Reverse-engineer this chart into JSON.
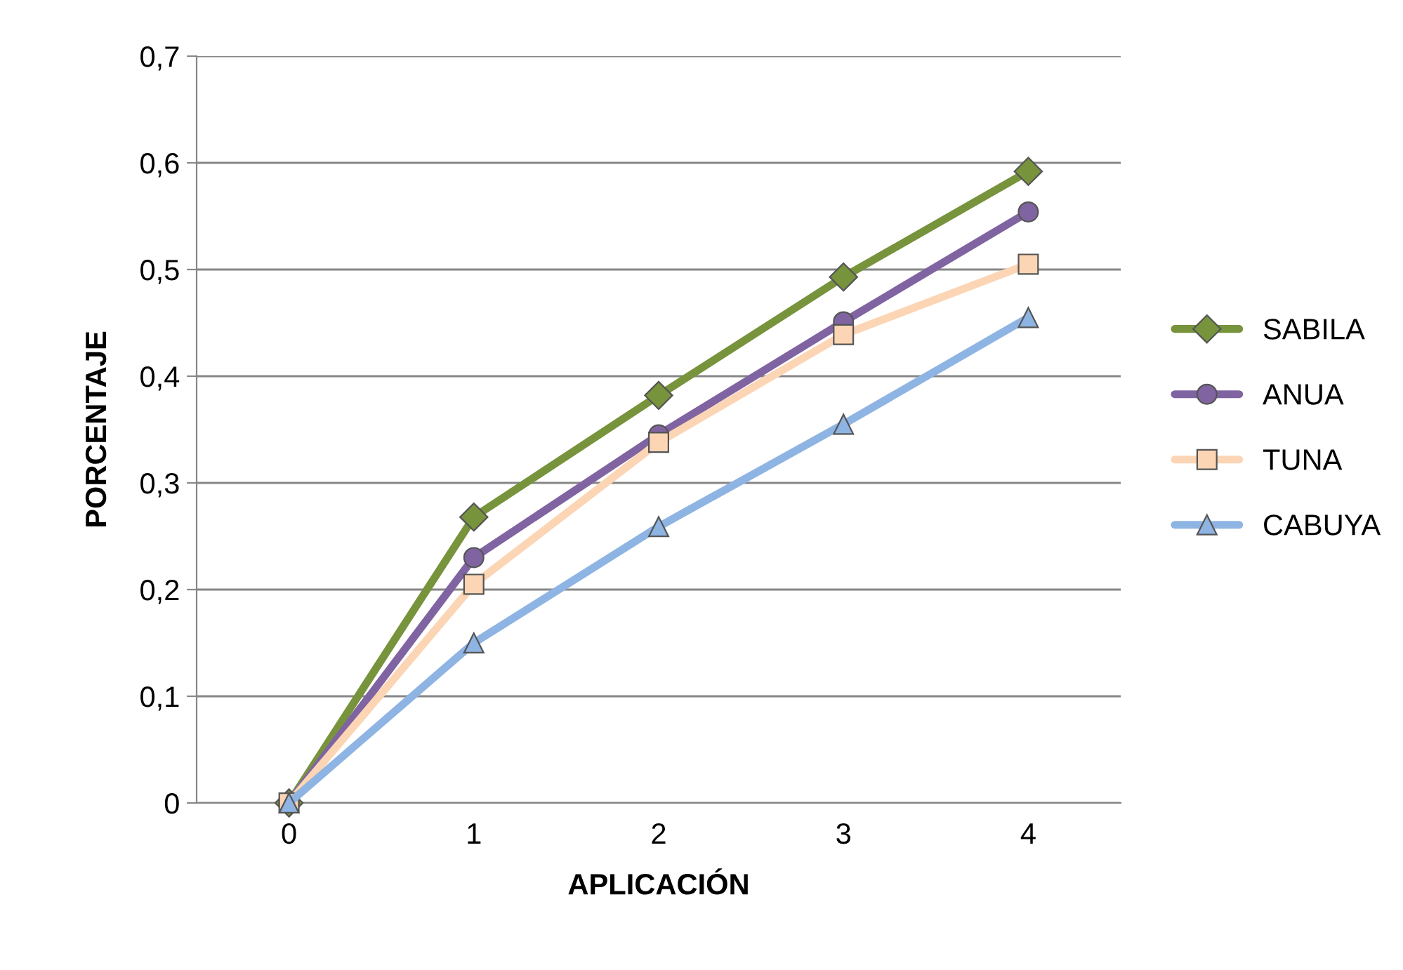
{
  "chart_data": {
    "type": "line",
    "xlabel": "APLICACIÓN",
    "ylabel": "PORCENTAJE",
    "categories": [
      "0",
      "1",
      "2",
      "3",
      "4"
    ],
    "ylim": [
      0,
      0.7
    ],
    "yticks": [
      {
        "value": 0,
        "label": "0"
      },
      {
        "value": 0.1,
        "label": "0,1"
      },
      {
        "value": 0.2,
        "label": "0,2"
      },
      {
        "value": 0.3,
        "label": "0,3"
      },
      {
        "value": 0.4,
        "label": "0,4"
      },
      {
        "value": 0.5,
        "label": "0,5"
      },
      {
        "value": 0.6,
        "label": "0,6"
      },
      {
        "value": 0.7,
        "label": "0,7"
      }
    ],
    "grid": "y",
    "legend": "right",
    "line_style": "solid",
    "series": [
      {
        "name": "SABILA",
        "color": "#77933c",
        "marker": "diamond",
        "values": [
          0,
          0.268,
          0.382,
          0.493,
          0.592
        ]
      },
      {
        "name": "ANUA",
        "color": "#8064a2",
        "marker": "circle",
        "values": [
          0,
          0.23,
          0.345,
          0.451,
          0.554
        ]
      },
      {
        "name": "TUNA",
        "color": "#fcd5b5",
        "marker": "square",
        "values": [
          0,
          0.205,
          0.338,
          0.439,
          0.505
        ]
      },
      {
        "name": "CABUYA",
        "color": "#8eb4e3",
        "marker": "triangle",
        "values": [
          0,
          0.15,
          0.259,
          0.355,
          0.455
        ]
      }
    ]
  }
}
